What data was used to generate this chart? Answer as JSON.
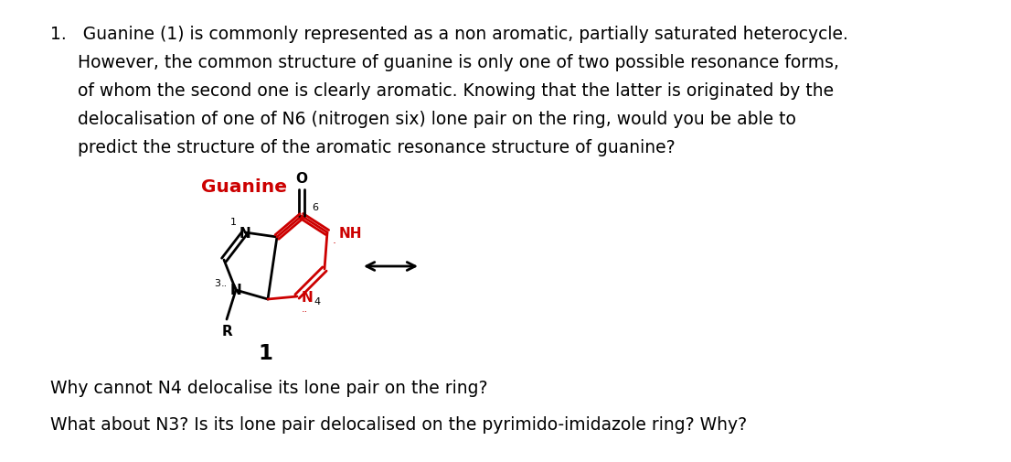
{
  "line1": "1.   Guanine (1) is commonly represented as a non aromatic, partially saturated heterocycle.",
  "line2": "     However, the common structure of guanine is only one of two possible resonance forms,",
  "line3": "     of whom the second one is clearly aromatic. Knowing that the latter is originated by the",
  "line4": "     delocalisation of one of N6 (nitrogen six) lone pair on the ring, would you be able to",
  "line5": "     predict the structure of the aromatic resonance structure of guanine?",
  "guanine_label": "Guanine",
  "guanine_label_color": "#cc0000",
  "number_label": "1",
  "question1": "Why cannot N4 delocalise its lone pair on the ring?",
  "question2": "What about N3? Is its lone pair delocalised on the pyrimido-imidazole ring? Why?",
  "bg_color": "#ffffff",
  "text_color": "#000000",
  "red_color": "#cc0000",
  "font_size": 13.5
}
